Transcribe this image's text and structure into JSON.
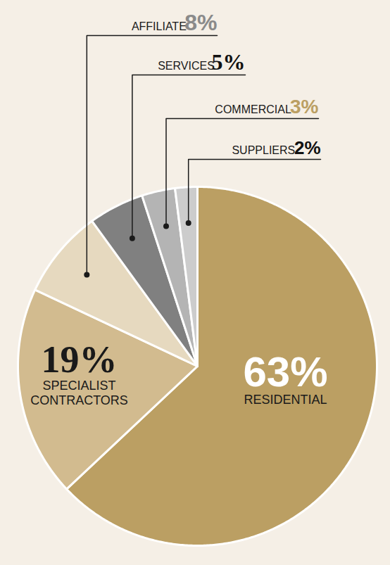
{
  "chart_data": {
    "type": "pie",
    "categories": [
      "RESIDENTIAL",
      "SPECIALIST CONTRACTORS",
      "AFFILIATE",
      "SERVICES",
      "COMMERCIAL",
      "SUPPLIERS"
    ],
    "values": [
      63,
      19,
      8,
      5,
      3,
      2
    ],
    "value_labels": [
      "63%",
      "19%",
      "8%",
      "5%",
      "3%",
      "2%"
    ],
    "colors": [
      "#bb9f63",
      "#d2bb8f",
      "#e6d9bf",
      "#808080",
      "#b4b4b4",
      "#cccccc"
    ],
    "data_labels": true
  }
}
